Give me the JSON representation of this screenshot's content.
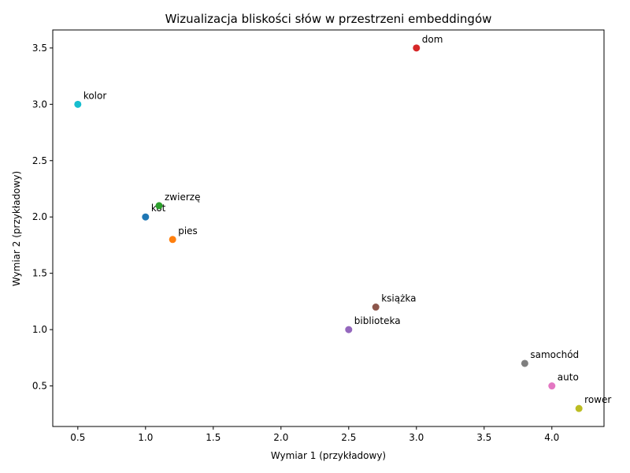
{
  "chart_data": {
    "type": "scatter",
    "title": "Wizualizacja bliskości słów w przestrzeni embeddingów",
    "xlabel": "Wymiar 1 (przykładowy)",
    "ylabel": "Wymiar 2 (przykładowy)",
    "labels": [
      "kot",
      "pies",
      "zwierzę",
      "dom",
      "biblioteka",
      "książka",
      "auto",
      "samochód",
      "rower",
      "kolor"
    ],
    "x": [
      1.0,
      1.2,
      1.1,
      3.0,
      2.5,
      2.7,
      4.0,
      3.8,
      4.2,
      0.5
    ],
    "values": [
      2.0,
      1.8,
      2.1,
      3.5,
      1.0,
      1.2,
      0.5,
      0.7,
      0.3,
      3.0
    ],
    "colors": [
      "#1f77b4",
      "#ff7f0e",
      "#2ca02c",
      "#d62728",
      "#9467bd",
      "#8c564b",
      "#e377c2",
      "#7f7f7f",
      "#bcbd22",
      "#17becf"
    ],
    "xlim": [
      0.315,
      4.385
    ],
    "ylim": [
      0.14,
      3.66
    ],
    "xticks": [
      0.5,
      {
        "value": 1.0,
        "label": "1.0"
      },
      1.5,
      {
        "value": 2.0,
        "label": "2.0"
      },
      2.5,
      {
        "value": 3.0,
        "label": "3.0"
      },
      3.5,
      {
        "value": 4.0,
        "label": "4.0"
      }
    ],
    "yticks": [
      0.5,
      {
        "value": 1.0,
        "label": "1.0"
      },
      1.5,
      {
        "value": 2.0,
        "label": "2.0"
      },
      2.5,
      {
        "value": 3.0,
        "label": "3.0"
      },
      3.5
    ],
    "grid": false
  }
}
